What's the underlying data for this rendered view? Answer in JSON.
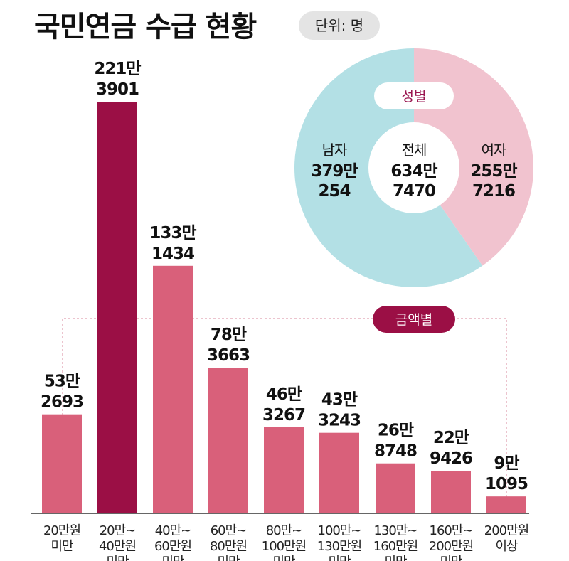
{
  "title": "국민연금 수급 현황",
  "unit_label": "단위: 명",
  "colors": {
    "bar": "#d9607a",
    "bar_highlight": "#9b0f45",
    "male": "#b3e0e5",
    "female": "#f1c3cf",
    "male_text": "#4a8a96",
    "female_text": "#c45a78",
    "amount_tag": "#9b0f45"
  },
  "chart_data": [
    {
      "type": "bar",
      "label": "금액별",
      "categories": [
        [
          "20만원",
          "미만"
        ],
        [
          "20만~",
          "40만원",
          "미만"
        ],
        [
          "40만~",
          "60만원",
          "미만"
        ],
        [
          "60만~",
          "80만원",
          "미만"
        ],
        [
          "80만~",
          "100만원",
          "미만"
        ],
        [
          "100만~",
          "130만원",
          "미만"
        ],
        [
          "130만~",
          "160만원",
          "미만"
        ],
        [
          "160만~",
          "200만원",
          "미만"
        ],
        [
          "200만원",
          "이상"
        ]
      ],
      "values": [
        532693,
        2213901,
        1331434,
        783663,
        463267,
        433243,
        268748,
        229426,
        91095
      ],
      "value_labels": [
        [
          "53만",
          "2693"
        ],
        [
          "221만",
          "3901"
        ],
        [
          "133만",
          "1434"
        ],
        [
          "78만",
          "3663"
        ],
        [
          "46만",
          "3267"
        ],
        [
          "43만",
          "3243"
        ],
        [
          "26만",
          "8748"
        ],
        [
          "22만",
          "9426"
        ],
        [
          "9만",
          "1095"
        ]
      ],
      "highlight_index": 1
    },
    {
      "type": "pie",
      "label": "성별",
      "center_label": "전체",
      "center_value": [
        "634만",
        "7470"
      ],
      "slices": [
        {
          "name": "남자",
          "value": 3790254,
          "value_label": [
            "379만",
            "254"
          ]
        },
        {
          "name": "여자",
          "value": 2557216,
          "value_label": [
            "255만",
            "7216"
          ]
        }
      ]
    }
  ]
}
